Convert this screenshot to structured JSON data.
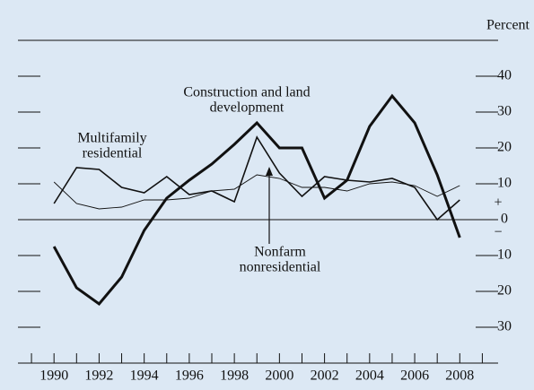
{
  "chart_data": {
    "type": "line",
    "y_unit_label": "Percent",
    "sign_labels": [
      "+",
      "−"
    ],
    "x": [
      1990,
      1991,
      1992,
      1993,
      1994,
      1995,
      1996,
      1997,
      1998,
      1999,
      2000,
      2001,
      2002,
      2003,
      2004,
      2005,
      2006,
      2007,
      2008
    ],
    "xlim": [
      1988.4,
      2009.7
    ],
    "xticks": [
      1990,
      1992,
      1994,
      1996,
      1998,
      2000,
      2002,
      2004,
      2006,
      2008
    ],
    "xminor_ticks": [
      1989,
      1991,
      1993,
      1995,
      1997,
      1999,
      2001,
      2003,
      2005,
      2007,
      2009
    ],
    "ylim": [
      -40,
      50
    ],
    "yticks": [
      40,
      30,
      20,
      10,
      0,
      {
        "value": -10,
        "label": "10"
      },
      {
        "value": -20,
        "label": "20"
      },
      {
        "value": -30,
        "label": "30"
      }
    ],
    "series": [
      {
        "label": [
          "Construction and land",
          "development"
        ],
        "color": "#111111",
        "line_width": 3,
        "values": [
          -7.5,
          -19,
          -23.5,
          -16,
          -3,
          6,
          11,
          15.5,
          21,
          27,
          20,
          20,
          6,
          11,
          26,
          34.5,
          27,
          12.5,
          -5
        ]
      },
      {
        "label": [
          "Multifamily",
          "residential"
        ],
        "color": "#111111",
        "line_width": 1.6,
        "values": [
          4.5,
          14.5,
          14,
          9,
          7.5,
          12,
          7,
          8,
          5,
          23,
          13,
          6.5,
          12,
          11,
          10.5,
          11.5,
          9,
          0,
          5.5
        ]
      },
      {
        "label": [
          "Nonfarm",
          "nonresidential"
        ],
        "color": "#111111",
        "line_width": 0.9,
        "values": [
          10.5,
          4.5,
          3,
          3.5,
          5.5,
          5.5,
          6,
          8,
          8.5,
          12.5,
          11.5,
          9,
          9,
          8,
          10,
          10.5,
          9.5,
          6.5,
          9.5
        ]
      }
    ]
  }
}
